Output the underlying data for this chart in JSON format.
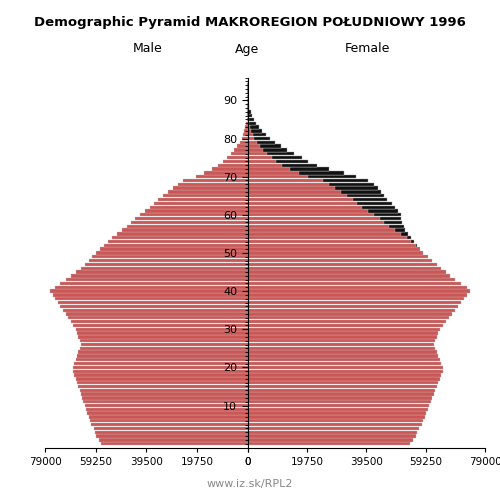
{
  "title": "Demographic Pyramid MAKROREGION POŁUDNIOWY 1996",
  "male_label": "Male",
  "female_label": "Female",
  "age_label": "Age",
  "footer": "www.iz.sk/RPL2",
  "xlim": 79000,
  "bar_color": "#cc5555",
  "bar_edgecolor": "#bbbbbb",
  "excess_color": "#111111",
  "ages": [
    0,
    1,
    2,
    3,
    4,
    5,
    6,
    7,
    8,
    9,
    10,
    11,
    12,
    13,
    14,
    15,
    16,
    17,
    18,
    19,
    20,
    21,
    22,
    23,
    24,
    25,
    26,
    27,
    28,
    29,
    30,
    31,
    32,
    33,
    34,
    35,
    36,
    37,
    38,
    39,
    40,
    41,
    42,
    43,
    44,
    45,
    46,
    47,
    48,
    49,
    50,
    51,
    52,
    53,
    54,
    55,
    56,
    57,
    58,
    59,
    60,
    61,
    62,
    63,
    64,
    65,
    66,
    67,
    68,
    69,
    70,
    71,
    72,
    73,
    74,
    75,
    76,
    77,
    78,
    79,
    80,
    81,
    82,
    83,
    84,
    85,
    86,
    87,
    88,
    89,
    90,
    91,
    92,
    93,
    94,
    95
  ],
  "male": [
    57000,
    58000,
    59000,
    59500,
    60000,
    61000,
    61500,
    62000,
    62500,
    63000,
    63500,
    64000,
    64500,
    65000,
    65500,
    66000,
    66500,
    67000,
    67500,
    68000,
    68000,
    67500,
    67000,
    66500,
    66000,
    65500,
    65000,
    65500,
    66000,
    66500,
    67000,
    68000,
    69000,
    70000,
    71000,
    72000,
    73000,
    74000,
    75000,
    76000,
    77000,
    75000,
    73000,
    71000,
    69000,
    67000,
    65000,
    63500,
    62000,
    60500,
    59000,
    57500,
    56000,
    54500,
    53000,
    51000,
    49000,
    47000,
    45500,
    44000,
    42000,
    40000,
    38000,
    36500,
    35000,
    33000,
    31000,
    29000,
    27000,
    25000,
    20000,
    17000,
    14000,
    11500,
    9500,
    8000,
    6500,
    5200,
    4000,
    3100,
    2300,
    1700,
    1200,
    850,
    580,
    390,
    250,
    155,
    90,
    50,
    25,
    12,
    5,
    2,
    1,
    0
  ],
  "female": [
    54000,
    55000,
    56000,
    56500,
    57000,
    58000,
    58500,
    59000,
    59500,
    60000,
    60500,
    61000,
    61500,
    62000,
    62500,
    63000,
    63500,
    64000,
    64500,
    65000,
    65000,
    64500,
    64000,
    63500,
    63000,
    62500,
    62000,
    62500,
    63000,
    63500,
    64000,
    65000,
    66000,
    67000,
    68000,
    69000,
    70000,
    71000,
    72000,
    73000,
    74000,
    73000,
    71000,
    69000,
    67500,
    66000,
    64500,
    63000,
    61500,
    60000,
    58500,
    57500,
    56500,
    55500,
    54500,
    53500,
    52500,
    52000,
    51500,
    51000,
    51000,
    50000,
    49000,
    48000,
    46500,
    45500,
    44500,
    43500,
    42000,
    40000,
    36000,
    32000,
    27000,
    23000,
    20000,
    18000,
    15500,
    13000,
    11000,
    9000,
    7500,
    6000,
    4800,
    3700,
    2800,
    2000,
    1450,
    1000,
    660,
    420,
    240,
    130,
    65,
    30,
    13,
    5
  ]
}
